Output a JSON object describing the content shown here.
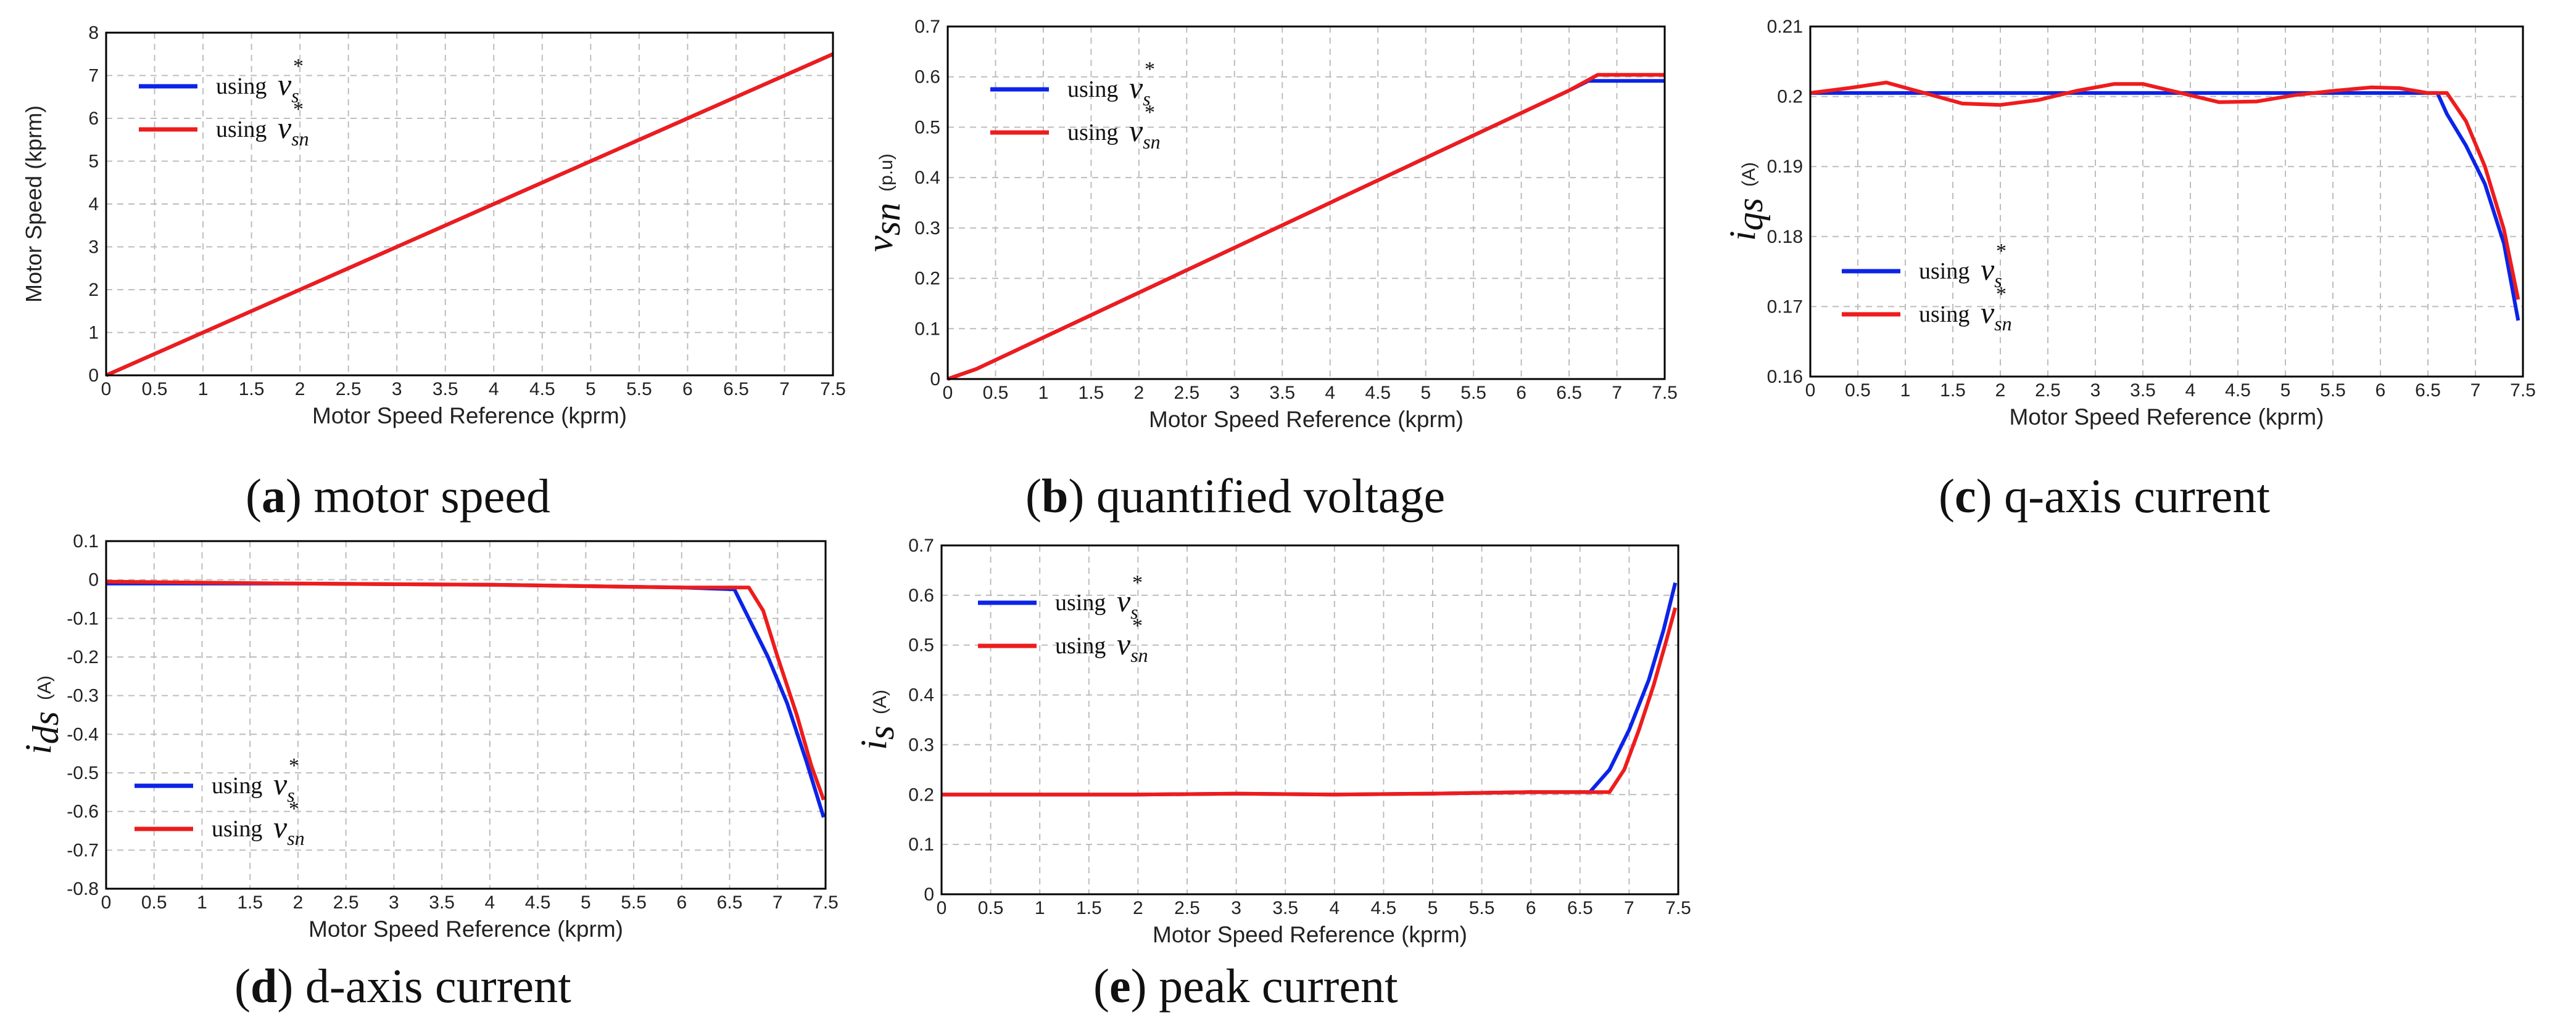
{
  "colors": {
    "series_blue": "#0b24e8",
    "series_red": "#ee1c1c",
    "grid": "#bdbdbd",
    "axis": "#000000"
  },
  "chart_data": [
    {
      "id": "a",
      "type": "line",
      "caption_letter": "a",
      "caption_text": "motor speed",
      "xlabel": "Motor Speed Reference (kprm)",
      "ylabel": "Motor Speed (kprm)",
      "xlim": [
        0,
        7.5
      ],
      "ylim": [
        0,
        8
      ],
      "xticks": [
        "0",
        "0.5",
        "1",
        "1.5",
        "2",
        "2.5",
        "3",
        "3.5",
        "4",
        "4.5",
        "5",
        "5.5",
        "6",
        "6.5",
        "7",
        "7.5"
      ],
      "yticks": [
        "0",
        "1",
        "2",
        "3",
        "4",
        "5",
        "6",
        "7",
        "8"
      ],
      "legend": [
        "using",
        "using"
      ],
      "series": [
        {
          "name": "using v_s*",
          "color": "blue",
          "x": [
            0,
            7.5
          ],
          "y": [
            0,
            7.5
          ]
        },
        {
          "name": "using v_sn*",
          "color": "red",
          "x": [
            0,
            7.5
          ],
          "y": [
            0,
            7.5
          ]
        }
      ]
    },
    {
      "id": "b",
      "type": "line",
      "caption_letter": "b",
      "caption_text": "quantified voltage",
      "xlabel": "Motor Speed Reference (kprm)",
      "ylabel_symbol": "v",
      "ylabel_sub": "sn",
      "ylabel_unit": "(p.u)",
      "xlim": [
        0,
        7.5
      ],
      "ylim": [
        0,
        0.7
      ],
      "xticks": [
        "0",
        "0.5",
        "1",
        "1.5",
        "2",
        "2.5",
        "3",
        "3.5",
        "4",
        "4.5",
        "5",
        "5.5",
        "6",
        "6.5",
        "7",
        "7.5"
      ],
      "yticks": [
        "0",
        "0.1",
        "0.2",
        "0.3",
        "0.4",
        "0.5",
        "0.6",
        "0.7"
      ],
      "legend": [
        "using",
        "using"
      ],
      "series": [
        {
          "name": "using v_s*",
          "color": "blue",
          "x": [
            0,
            0.3,
            6.5,
            6.7,
            7.5
          ],
          "y": [
            0,
            0.02,
            0.573,
            0.592,
            0.592
          ]
        },
        {
          "name": "using v_sn*",
          "color": "red",
          "x": [
            0,
            0.3,
            6.5,
            6.8,
            7.5
          ],
          "y": [
            0,
            0.02,
            0.573,
            0.604,
            0.604
          ]
        }
      ]
    },
    {
      "id": "c",
      "type": "line",
      "caption_letter": "c",
      "caption_text": "q-axis current",
      "xlabel": "Motor Speed Reference (kprm)",
      "ylabel_symbol": "i",
      "ylabel_sub": "qs",
      "ylabel_unit": "(A)",
      "xlim": [
        0,
        7.5
      ],
      "ylim": [
        0.16,
        0.21
      ],
      "xticks": [
        "0",
        "0.5",
        "1",
        "1.5",
        "2",
        "2.5",
        "3",
        "3.5",
        "4",
        "4.5",
        "5",
        "5.5",
        "6",
        "6.5",
        "7",
        "7.5"
      ],
      "yticks": [
        "0.16",
        "0.17",
        "0.18",
        "0.19",
        "0.2",
        "0.21"
      ],
      "legend": [
        "using",
        "using"
      ],
      "series": [
        {
          "name": "using v_s*",
          "color": "blue",
          "x": [
            0,
            6.6,
            6.7,
            6.9,
            7.1,
            7.3,
            7.45
          ],
          "y": [
            0.2005,
            0.2005,
            0.1975,
            0.193,
            0.1875,
            0.179,
            0.168
          ]
        },
        {
          "name": "using v_sn*",
          "color": "red",
          "x": [
            0,
            0.4,
            0.8,
            1.2,
            1.6,
            2.0,
            2.4,
            2.8,
            3.2,
            3.5,
            3.9,
            4.3,
            4.7,
            5.1,
            5.5,
            5.9,
            6.2,
            6.5,
            6.7,
            6.9,
            7.1,
            7.3,
            7.45
          ],
          "y": [
            0.2005,
            0.2012,
            0.202,
            0.2005,
            0.199,
            0.1988,
            0.1995,
            0.2008,
            0.2018,
            0.2018,
            0.2005,
            0.1992,
            0.1993,
            0.2002,
            0.2008,
            0.2013,
            0.2012,
            0.2005,
            0.2005,
            0.1965,
            0.19,
            0.181,
            0.171
          ]
        }
      ]
    },
    {
      "id": "d",
      "type": "line",
      "caption_letter": "d",
      "caption_text": "d-axis current",
      "xlabel": "Motor Speed Reference (kprm)",
      "ylabel_symbol": "i",
      "ylabel_sub": "ds",
      "ylabel_unit": "(A)",
      "xlim": [
        0,
        7.5
      ],
      "ylim": [
        -0.8,
        0.1
      ],
      "xticks": [
        "0",
        "0.5",
        "1",
        "1.5",
        "2",
        "2.5",
        "3",
        "3.5",
        "4",
        "4.5",
        "5",
        "5.5",
        "6",
        "6.5",
        "7",
        "7.5"
      ],
      "yticks": [
        "-0.8",
        "-0.7",
        "-0.6",
        "-0.5",
        "-0.4",
        "-0.3",
        "-0.2",
        "-0.1",
        "0",
        "0.1"
      ],
      "legend": [
        "using",
        "using"
      ],
      "series": [
        {
          "name": "using v_s*",
          "color": "blue",
          "x": [
            0,
            2,
            4,
            6,
            6.55,
            6.7,
            6.9,
            7.1,
            7.3,
            7.48
          ],
          "y": [
            -0.01,
            -0.01,
            -0.013,
            -0.02,
            -0.025,
            -0.1,
            -0.2,
            -0.32,
            -0.47,
            -0.615
          ]
        },
        {
          "name": "using v_sn*",
          "color": "red",
          "x": [
            0,
            2,
            4,
            6,
            6.7,
            6.85,
            7.0,
            7.2,
            7.35,
            7.48
          ],
          "y": [
            -0.005,
            -0.01,
            -0.013,
            -0.02,
            -0.02,
            -0.08,
            -0.2,
            -0.35,
            -0.48,
            -0.57
          ]
        }
      ]
    },
    {
      "id": "e",
      "type": "line",
      "caption_letter": "e",
      "caption_text": "peak current",
      "xlabel": "Motor Speed Reference (kprm)",
      "ylabel_symbol": "i",
      "ylabel_sub": "s",
      "ylabel_unit": "(A)",
      "xlim": [
        0,
        7.5
      ],
      "ylim": [
        0,
        0.7
      ],
      "xticks": [
        "0",
        "0.5",
        "1",
        "1.5",
        "2",
        "2.5",
        "3",
        "3.5",
        "4",
        "4.5",
        "5",
        "5.5",
        "6",
        "6.5",
        "7",
        "7.5"
      ],
      "yticks": [
        "0",
        "0.1",
        "0.2",
        "0.3",
        "0.4",
        "0.5",
        "0.6",
        "0.7"
      ],
      "legend": [
        "using",
        "using"
      ],
      "series": [
        {
          "name": "using v_s*",
          "color": "blue",
          "x": [
            0,
            1,
            2,
            3,
            4,
            5,
            6,
            6.6,
            6.8,
            7.0,
            7.2,
            7.35,
            7.47
          ],
          "y": [
            0.2,
            0.2,
            0.2,
            0.202,
            0.2,
            0.202,
            0.205,
            0.205,
            0.25,
            0.33,
            0.43,
            0.53,
            0.625
          ]
        },
        {
          "name": "using v_sn*",
          "color": "red",
          "x": [
            0,
            1,
            2,
            3,
            4,
            5,
            6,
            6.8,
            6.95,
            7.1,
            7.25,
            7.38,
            7.47
          ],
          "y": [
            0.2,
            0.2,
            0.2,
            0.202,
            0.2,
            0.202,
            0.205,
            0.205,
            0.25,
            0.33,
            0.42,
            0.51,
            0.575
          ]
        }
      ]
    }
  ]
}
